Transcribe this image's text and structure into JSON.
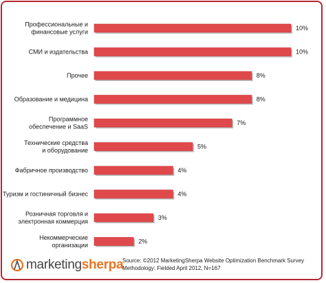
{
  "chart_data": {
    "type": "bar",
    "orientation": "horizontal",
    "categories": [
      [
        "Профессиональные и",
        "финансовые услуги"
      ],
      [
        "СМИ и издательства"
      ],
      [
        "Прочее"
      ],
      [
        "Образование и медицина"
      ],
      [
        "Программное",
        "обеспечение и SaaS"
      ],
      [
        "Технические средства",
        "и оборудование"
      ],
      [
        "Фабричное производство"
      ],
      [
        "Туризм и гостиничный бизнес"
      ],
      [
        "Розничная торговля и",
        "электронная коммерция"
      ],
      [
        "Некоммерческие",
        "организации"
      ]
    ],
    "values": [
      10,
      10,
      8,
      8,
      7,
      5,
      4,
      4,
      3,
      2
    ],
    "value_labels": [
      "10%",
      "10%",
      "8%",
      "8%",
      "7%",
      "5%",
      "4%",
      "4%",
      "3%",
      "2%"
    ],
    "bar_color": "#e0494b",
    "grid": false,
    "legend": "none"
  },
  "footer": {
    "logo": {
      "part1": "marketing",
      "part2": "sherpa",
      "mark_color": "#e8741f"
    },
    "source_line1": "Source: ©2012 MarketingSherpa Website Optimization Benchmark Survey",
    "source_line2": "Methodology: Fielded April 2012, N=167"
  }
}
